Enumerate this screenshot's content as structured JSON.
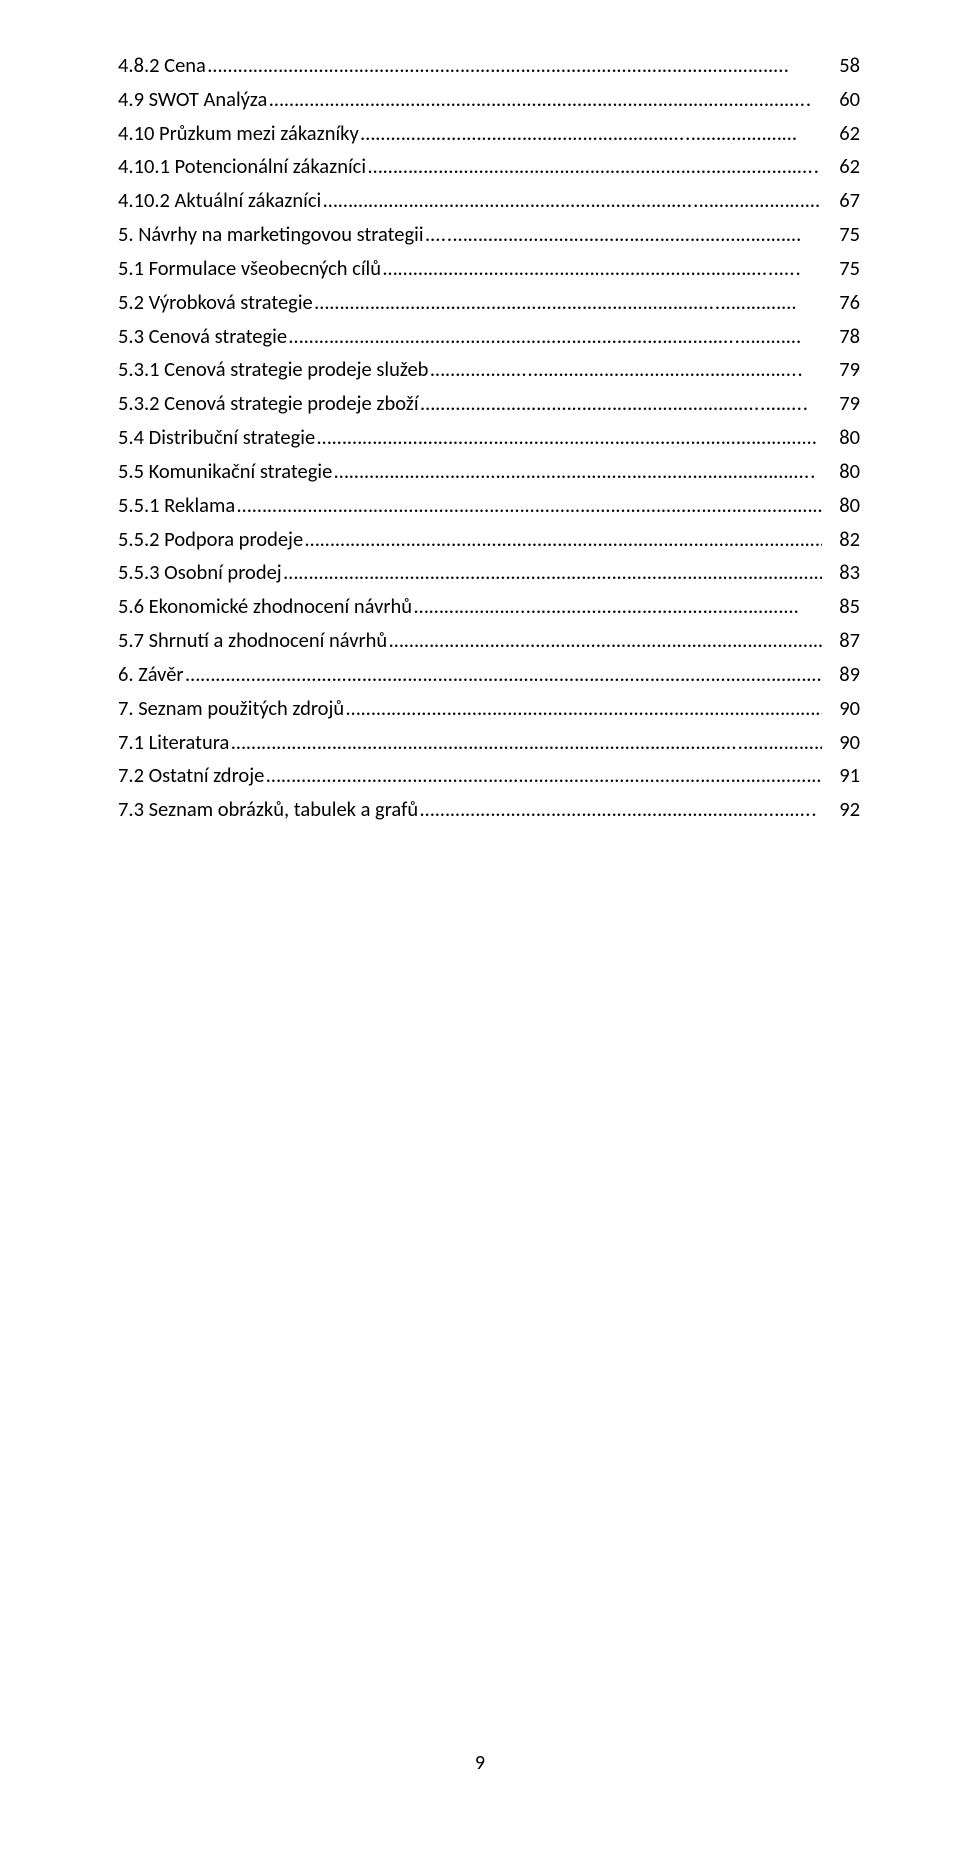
{
  "toc": {
    "entries": [
      {
        "title": "4.8.2 Cena",
        "leader": "…………………………………………………………………………………………………….",
        "page": "58"
      },
      {
        "title": "4.9 SWOT Analýza",
        "leader": "……………………………………………………………………………………………..",
        "page": "60"
      },
      {
        "title": "4.10 Průzkum mezi zákazníky",
        "leader": "………………………………………………………..…………………",
        "page": "62"
      },
      {
        "title": "4.10.1 Potencionální zákazníci",
        "leader": "……………………………………………………………………………..",
        "page": "62"
      },
      {
        "title": "4.10.2 Aktuální zákazníci",
        "leader": "………………………………………………………………..……………………",
        "page": "67"
      },
      {
        "title": "5. Návrhy na marketingovou strategii",
        "leader": "…..……………………………………………………………",
        "page": "75"
      },
      {
        "title": "5.1 Formulace všeobecných cílů",
        "leader": "…………………………………………………………………..…..",
        "page": "75"
      },
      {
        "title": "5.2 Výrobková strategie",
        "leader": "……………………………………………………………………..……………",
        "page": "76"
      },
      {
        "title": "5.3 Cenová strategie",
        "leader": "……………………………………………………………………………..…………",
        "page": "78"
      },
      {
        "title": "5.3.1 Cenová strategie prodeje služeb",
        "leader": "………………..……………………………………………..",
        "page": "79"
      },
      {
        "title": "5.3.2 Cenová strategie prodeje zboží",
        "leader": "…………………………………………………………..……..",
        "page": "79"
      },
      {
        "title": "5.4 Distribuční strategie",
        "leader": "………………………………………………………………………………………",
        "page": "80"
      },
      {
        "title": "5.5 Komunikační strategie",
        "leader": "…………………………………………………………………………………..",
        "page": "80"
      },
      {
        "title": "5.5.1 Reklama",
        "leader": "…………………………………………………………………………………………………………",
        "page": "80"
      },
      {
        "title": "5.5.2 Podpora prodeje",
        "leader": "……………………………………………………………………………………………",
        "page": "82"
      },
      {
        "title": "5.5.3 Osobní prodej",
        "leader": "……………………………………………………………………………………………….",
        "page": "83"
      },
      {
        "title": "5.6 Ekonomické zhodnocení návrhů",
        "leader": "………………….………………………………………………",
        "page": "85"
      },
      {
        "title": "5.7 Shrnutí a zhodnocení návrhů",
        "leader": "……………………………………………………………………………",
        "page": "87"
      },
      {
        "title": "6. Závěr",
        "leader": "………………………………………………………………………………………………………………….",
        "page": "89"
      },
      {
        "title": "7. Seznam použitých zdrojů",
        "leader": "……………………………………………………………………………………",
        "page": "90"
      },
      {
        "title": "7.1 Literatura",
        "leader": "………………………………………………………………………………………..……………….",
        "page": "90"
      },
      {
        "title": "7.2 Ostatní zdroje",
        "leader": "……………………………………………………………………………………………………",
        "page": "91"
      },
      {
        "title": "7.3 Seznam obrázků, tabulek a grafů",
        "leader": "…………………………………………………………….……..",
        "page": "92"
      }
    ]
  },
  "page_number": "9"
}
